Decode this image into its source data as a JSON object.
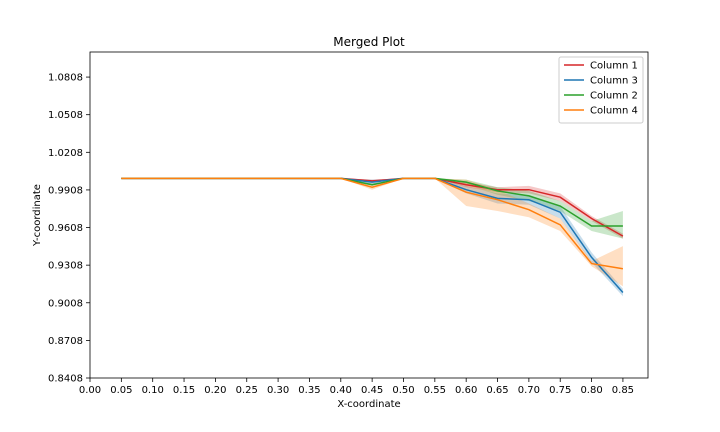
{
  "chart_data": {
    "type": "line",
    "title": "Merged Plot",
    "xlabel": "X-coordinate",
    "ylabel": "Y-coordinate",
    "xlim": [
      0.0,
      0.89
    ],
    "ylim": [
      0.8408,
      1.1008
    ],
    "xticks": [
      0.0,
      0.05,
      0.1,
      0.15,
      0.2,
      0.25,
      0.3,
      0.35,
      0.4,
      0.45,
      0.5,
      0.55,
      0.6,
      0.65,
      0.7,
      0.75,
      0.8,
      0.85
    ],
    "xtick_labels": [
      "0.00",
      "0.05",
      "0.10",
      "0.15",
      "0.20",
      "0.25",
      "0.30",
      "0.35",
      "0.40",
      "0.45",
      "0.50",
      "0.55",
      "0.60",
      "0.65",
      "0.70",
      "0.75",
      "0.80",
      "0.85"
    ],
    "yticks": [
      0.8408,
      0.8708,
      0.9008,
      0.9308,
      0.9608,
      0.9908,
      1.0208,
      1.0508,
      1.0808
    ],
    "ytick_labels": [
      "0.8408",
      "0.8708",
      "0.9008",
      "0.9308",
      "0.9608",
      "0.9908",
      "1.0208",
      "1.0508",
      "1.0808"
    ],
    "grid": false,
    "legend_position": "top-right",
    "x": [
      0.05,
      0.1,
      0.15,
      0.2,
      0.25,
      0.3,
      0.35,
      0.4,
      0.45,
      0.5,
      0.55,
      0.6,
      0.65,
      0.7,
      0.75,
      0.8,
      0.85
    ],
    "series": [
      {
        "name": "Column 1",
        "color": "#d62728",
        "values": [
          1.0,
          1.0,
          1.0,
          1.0,
          1.0,
          1.0,
          1.0,
          1.0,
          0.998,
          1.0,
          1.0,
          0.995,
          0.991,
          0.991,
          0.985,
          0.968,
          0.954
        ],
        "lower": [
          1.0,
          1.0,
          1.0,
          1.0,
          1.0,
          1.0,
          1.0,
          1.0,
          0.997,
          1.0,
          1.0,
          0.993,
          0.989,
          0.988,
          0.982,
          0.966,
          0.952
        ],
        "upper": [
          1.0,
          1.0,
          1.0,
          1.0,
          1.0,
          1.0,
          1.0,
          1.0,
          0.999,
          1.0,
          1.0,
          0.997,
          0.993,
          0.994,
          0.988,
          0.97,
          0.956
        ]
      },
      {
        "name": "Column 3",
        "color": "#1f77b4",
        "values": [
          1.0,
          1.0,
          1.0,
          1.0,
          1.0,
          1.0,
          1.0,
          1.0,
          0.997,
          1.0,
          1.0,
          0.991,
          0.984,
          0.983,
          0.973,
          0.937,
          0.909
        ],
        "lower": [
          1.0,
          1.0,
          1.0,
          1.0,
          1.0,
          1.0,
          1.0,
          1.0,
          0.995,
          1.0,
          1.0,
          0.988,
          0.98,
          0.979,
          0.968,
          0.933,
          0.906
        ],
        "upper": [
          1.0,
          1.0,
          1.0,
          1.0,
          1.0,
          1.0,
          1.0,
          1.0,
          0.999,
          1.0,
          1.0,
          0.994,
          0.988,
          0.987,
          0.978,
          0.941,
          0.912
        ]
      },
      {
        "name": "Column 2",
        "color": "#2ca02c",
        "values": [
          1.0,
          1.0,
          1.0,
          1.0,
          1.0,
          1.0,
          1.0,
          1.0,
          0.995,
          1.0,
          1.0,
          0.997,
          0.99,
          0.986,
          0.978,
          0.962,
          0.962
        ],
        "lower": [
          1.0,
          1.0,
          1.0,
          1.0,
          1.0,
          1.0,
          1.0,
          1.0,
          0.994,
          1.0,
          1.0,
          0.995,
          0.987,
          0.982,
          0.974,
          0.958,
          0.952
        ],
        "upper": [
          1.0,
          1.0,
          1.0,
          1.0,
          1.0,
          1.0,
          1.0,
          1.0,
          0.996,
          1.0,
          1.0,
          0.999,
          0.993,
          0.99,
          0.982,
          0.966,
          0.974
        ]
      },
      {
        "name": "Column 4",
        "color": "#ff7f0e",
        "values": [
          1.0,
          1.0,
          1.0,
          1.0,
          1.0,
          1.0,
          1.0,
          1.0,
          0.993,
          1.0,
          1.0,
          0.989,
          0.983,
          0.975,
          0.963,
          0.932,
          0.928
        ],
        "lower": [
          1.0,
          1.0,
          1.0,
          1.0,
          1.0,
          1.0,
          1.0,
          1.0,
          0.991,
          1.0,
          1.0,
          0.978,
          0.974,
          0.969,
          0.958,
          0.93,
          0.914
        ],
        "upper": [
          1.0,
          1.0,
          1.0,
          1.0,
          1.0,
          1.0,
          1.0,
          1.0,
          0.995,
          1.0,
          1.0,
          0.999,
          0.991,
          0.98,
          0.968,
          0.934,
          0.946
        ]
      }
    ]
  }
}
